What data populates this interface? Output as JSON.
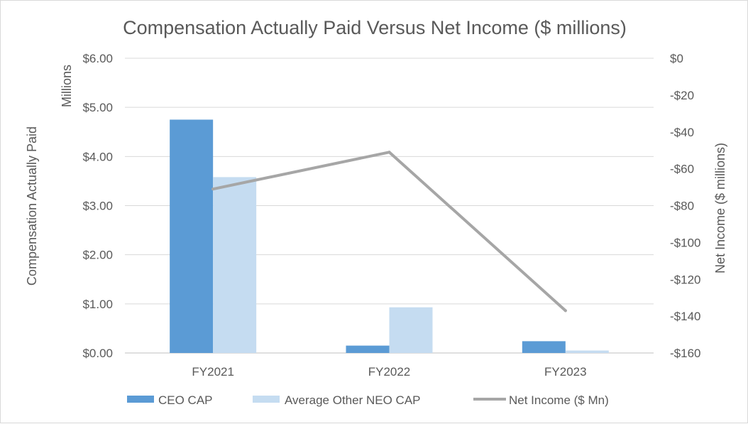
{
  "chart_data": {
    "type": "bar",
    "title": "Compensation Actually Paid Versus Net Income ($ millions)",
    "categories": [
      "FY2021",
      "FY2022",
      "FY2023"
    ],
    "y_left": {
      "label": "Compensation Actually Paid",
      "unit_label": "Millions",
      "range": [
        0,
        6
      ],
      "ticks": [
        0,
        1,
        2,
        3,
        4,
        5,
        6
      ],
      "tick_labels": [
        "$0.00",
        "$1.00",
        "$2.00",
        "$3.00",
        "$4.00",
        "$5.00",
        "$6.00"
      ]
    },
    "y_right": {
      "label": "Net Income ($ millions)",
      "range": [
        -160,
        0
      ],
      "ticks": [
        -160,
        -140,
        -120,
        -100,
        -80,
        -60,
        -40,
        -20,
        0
      ],
      "tick_labels": [
        "-$160",
        "-$140",
        "-$120",
        "-$100",
        "-$80",
        "-$60",
        "-$40",
        "-$20",
        "$0"
      ]
    },
    "series": [
      {
        "name": "CEO CAP",
        "type": "bar",
        "axis": "left",
        "color": "#5b9bd5",
        "values": [
          4.75,
          0.15,
          0.24
        ]
      },
      {
        "name": "Average Other NEO CAP",
        "type": "bar",
        "axis": "left",
        "color": "#c5dcf1",
        "values": [
          3.58,
          0.93,
          0.05
        ]
      },
      {
        "name": "Net Income ($ Mn)",
        "type": "line",
        "axis": "right",
        "color": "#a6a6a6",
        "values": [
          -71,
          -51,
          -137
        ]
      }
    ],
    "grid": true,
    "legend": "bottom"
  }
}
